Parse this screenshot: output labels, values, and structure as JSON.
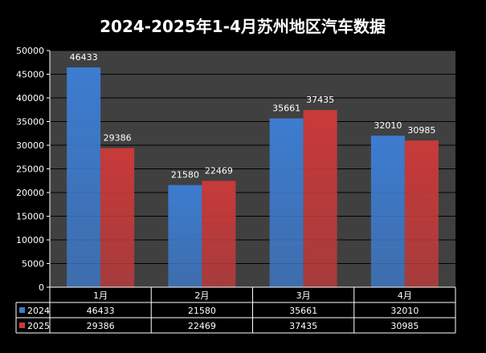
{
  "chart_data": {
    "type": "bar",
    "title": "2024-2025年1-4月苏州地区汽车数据",
    "categories": [
      "1月",
      "2月",
      "3月",
      "4月"
    ],
    "series": [
      {
        "name": "2024",
        "values": [
          46433,
          21580,
          35661,
          32010
        ],
        "color": "#3d7cd0"
      },
      {
        "name": "2025",
        "values": [
          29386,
          22469,
          37435,
          30985
        ],
        "color": "#c83a3a"
      }
    ],
    "ylim": [
      0,
      50000
    ],
    "yticks": [
      0,
      5000,
      10000,
      15000,
      20000,
      25000,
      30000,
      35000,
      40000,
      45000,
      50000
    ],
    "grid": true,
    "legend": "data-table",
    "xlabel": "",
    "ylabel": ""
  },
  "colors": {
    "background": "#000000",
    "plot_area": "#404040",
    "grid": "#000000",
    "text": "#ffffff"
  }
}
